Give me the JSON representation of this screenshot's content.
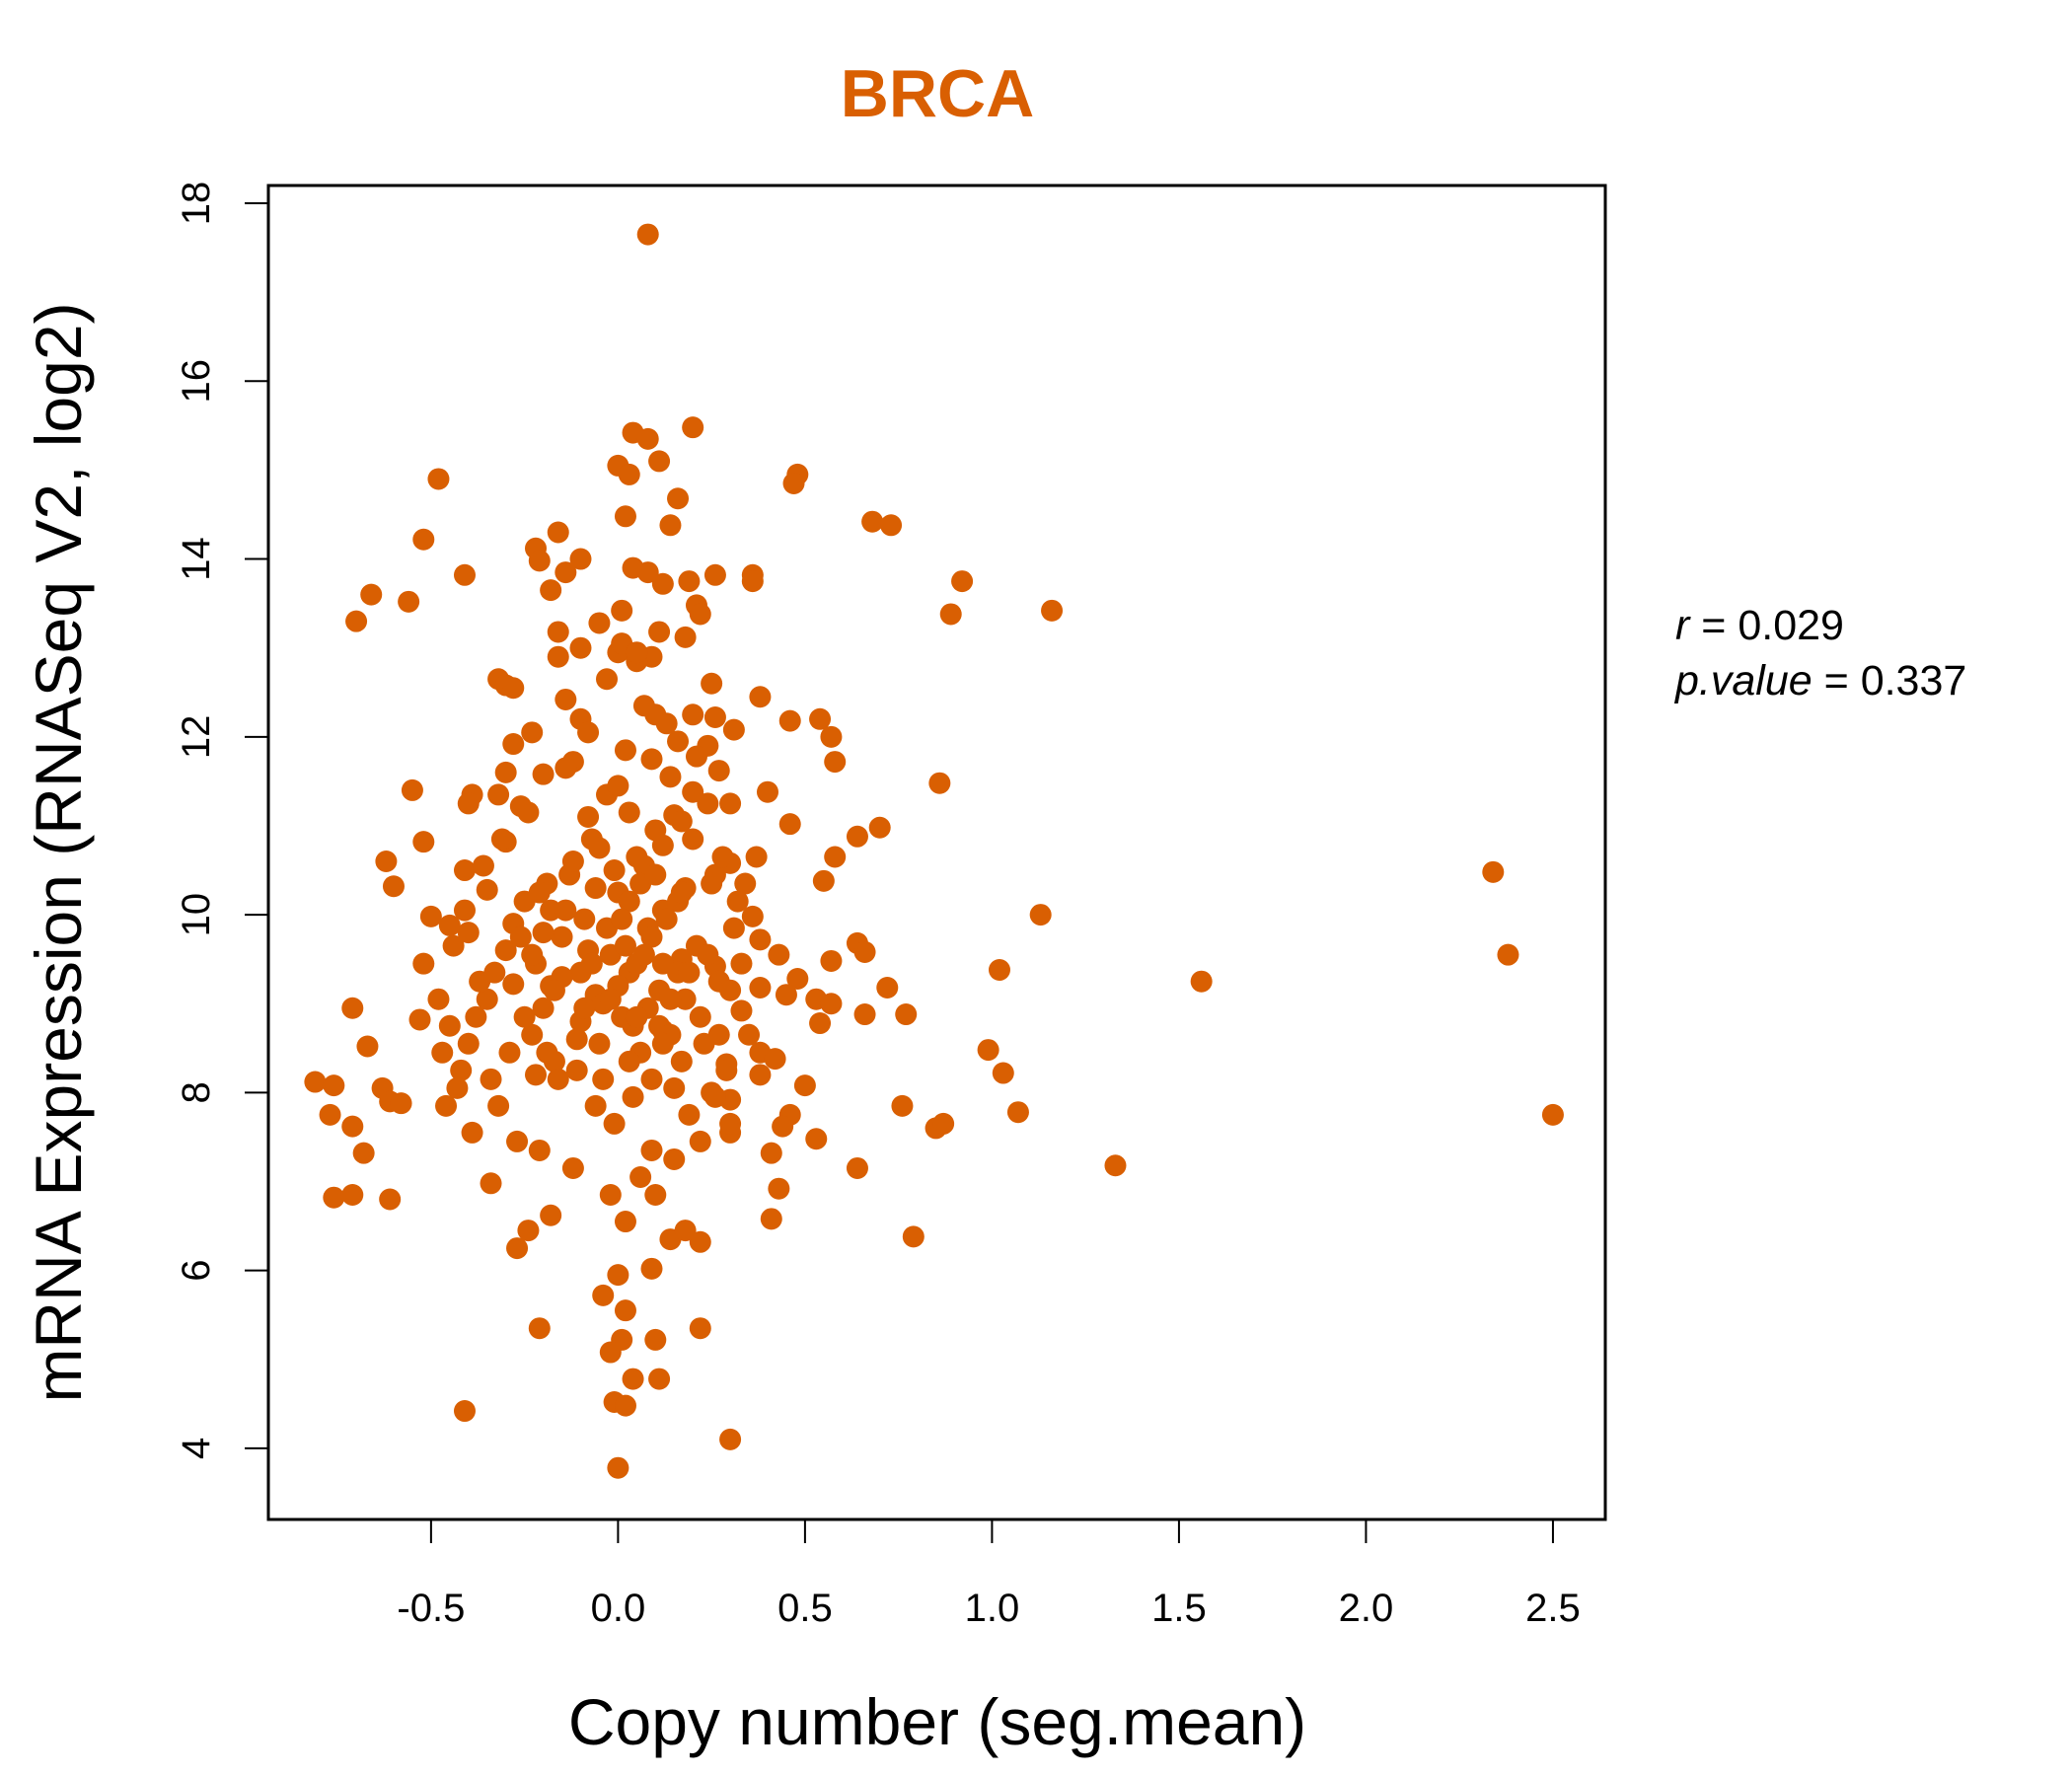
{
  "chart_data": {
    "type": "scatter",
    "title": "BRCA",
    "xlabel": "Copy number (seg.mean)",
    "ylabel": "mRNA Expression (RNASeq V2, log2)",
    "xlim": [
      -0.935,
      2.64
    ],
    "ylim": [
      3.2,
      18.2
    ],
    "xticks": [
      -0.5,
      0.0,
      0.5,
      1.0,
      1.5,
      2.0,
      2.5
    ],
    "xtick_labels": [
      "-0.5",
      "0.0",
      "0.5",
      "1.0",
      "1.5",
      "2.0",
      "2.5"
    ],
    "yticks": [
      4,
      6,
      8,
      10,
      12,
      14,
      16,
      18
    ],
    "ytick_labels": [
      "4",
      "6",
      "8",
      "10",
      "12",
      "14",
      "16",
      "18"
    ],
    "grid": false,
    "point_color": "#d95f02",
    "stats": {
      "r_label": "r",
      "r_value": "0.029",
      "p_label": "p.value",
      "p_value": "0.337"
    },
    "points": [
      [
        0.08,
        17.65
      ],
      [
        0.2,
        15.48
      ],
      [
        0.04,
        15.42
      ],
      [
        0.08,
        15.35
      ],
      [
        0.0,
        15.05
      ],
      [
        0.11,
        15.1
      ],
      [
        0.03,
        14.95
      ],
      [
        0.48,
        14.95
      ],
      [
        0.47,
        14.85
      ],
      [
        -0.48,
        14.9
      ],
      [
        0.16,
        14.68
      ],
      [
        0.02,
        14.48
      ],
      [
        0.68,
        14.42
      ],
      [
        0.73,
        14.38
      ],
      [
        0.14,
        14.38
      ],
      [
        -0.16,
        14.3
      ],
      [
        -0.52,
        14.22
      ],
      [
        -0.22,
        14.12
      ],
      [
        -0.21,
        13.98
      ],
      [
        -0.1,
        14.0
      ],
      [
        0.04,
        13.9
      ],
      [
        0.08,
        13.85
      ],
      [
        -0.14,
        13.85
      ],
      [
        0.26,
        13.82
      ],
      [
        0.36,
        13.82
      ],
      [
        0.36,
        13.75
      ],
      [
        0.19,
        13.75
      ],
      [
        -0.41,
        13.82
      ],
      [
        0.92,
        13.75
      ],
      [
        -0.66,
        13.6
      ],
      [
        -0.56,
        13.52
      ],
      [
        -0.18,
        13.65
      ],
      [
        0.12,
        13.72
      ],
      [
        0.21,
        13.48
      ],
      [
        0.22,
        13.38
      ],
      [
        0.01,
        13.42
      ],
      [
        0.89,
        13.38
      ],
      [
        1.16,
        13.42
      ],
      [
        -0.7,
        13.3
      ],
      [
        -0.05,
        13.28
      ],
      [
        0.11,
        13.18
      ],
      [
        0.18,
        13.12
      ],
      [
        -0.16,
        13.18
      ],
      [
        -0.1,
        13.0
      ],
      [
        0.0,
        12.95
      ],
      [
        0.09,
        12.9
      ],
      [
        -0.16,
        12.9
      ],
      [
        0.05,
        12.85
      ],
      [
        -0.32,
        12.65
      ],
      [
        -0.3,
        12.58
      ],
      [
        0.25,
        12.6
      ],
      [
        -0.28,
        12.55
      ],
      [
        0.38,
        12.45
      ],
      [
        -0.14,
        12.42
      ],
      [
        0.1,
        12.25
      ],
      [
        0.2,
        12.25
      ],
      [
        0.26,
        12.22
      ],
      [
        0.54,
        12.2
      ],
      [
        0.46,
        12.18
      ],
      [
        -0.1,
        12.2
      ],
      [
        0.31,
        12.08
      ],
      [
        0.57,
        12.0
      ],
      [
        -0.23,
        12.05
      ],
      [
        0.16,
        11.95
      ],
      [
        -0.28,
        11.92
      ],
      [
        0.24,
        11.9
      ],
      [
        0.58,
        11.72
      ],
      [
        0.21,
        11.78
      ],
      [
        -0.12,
        11.72
      ],
      [
        0.27,
        11.62
      ],
      [
        -0.3,
        11.6
      ],
      [
        -0.2,
        11.58
      ],
      [
        0.86,
        11.48
      ],
      [
        0.4,
        11.38
      ],
      [
        -0.55,
        11.4
      ],
      [
        -0.39,
        11.35
      ],
      [
        0.2,
        11.38
      ],
      [
        -0.32,
        11.35
      ],
      [
        -0.4,
        11.25
      ],
      [
        0.3,
        11.25
      ],
      [
        -0.26,
        11.22
      ],
      [
        0.15,
        11.12
      ],
      [
        -0.08,
        11.1
      ],
      [
        0.46,
        11.02
      ],
      [
        0.7,
        10.98
      ],
      [
        0.64,
        10.88
      ],
      [
        -0.52,
        10.82
      ],
      [
        -0.3,
        10.82
      ],
      [
        0.12,
        10.78
      ],
      [
        0.37,
        10.65
      ],
      [
        0.58,
        10.65
      ],
      [
        -0.62,
        10.6
      ],
      [
        0.3,
        10.58
      ],
      [
        -0.41,
        10.5
      ],
      [
        0.26,
        10.45
      ],
      [
        0.55,
        10.38
      ],
      [
        -0.6,
        10.32
      ],
      [
        0.34,
        10.35
      ],
      [
        0.18,
        10.3
      ],
      [
        -0.35,
        10.28
      ],
      [
        1.13,
        10.0
      ],
      [
        -0.5,
        9.98
      ],
      [
        0.36,
        9.98
      ],
      [
        2.34,
        10.48
      ],
      [
        -0.45,
        9.88
      ],
      [
        -0.4,
        9.8
      ],
      [
        0.38,
        9.72
      ],
      [
        0.64,
        9.68
      ],
      [
        0.66,
        9.58
      ],
      [
        2.38,
        9.55
      ],
      [
        -0.52,
        9.45
      ],
      [
        0.43,
        9.55
      ],
      [
        0.57,
        9.48
      ],
      [
        0.17,
        9.5
      ],
      [
        1.02,
        9.38
      ],
      [
        0.26,
        9.42
      ],
      [
        1.56,
        9.25
      ],
      [
        0.48,
        9.28
      ],
      [
        0.72,
        9.18
      ],
      [
        0.38,
        9.18
      ],
      [
        -0.28,
        9.22
      ],
      [
        0.45,
        9.1
      ],
      [
        0.53,
        9.05
      ],
      [
        0.57,
        9.0
      ],
      [
        -0.71,
        8.95
      ],
      [
        0.33,
        8.92
      ],
      [
        0.66,
        8.88
      ],
      [
        0.77,
        8.88
      ],
      [
        -0.53,
        8.82
      ],
      [
        0.54,
        8.78
      ],
      [
        -0.45,
        8.75
      ],
      [
        0.12,
        8.7
      ],
      [
        -0.67,
        8.52
      ],
      [
        0.99,
        8.48
      ],
      [
        0.38,
        8.45
      ],
      [
        0.42,
        8.38
      ],
      [
        0.29,
        8.32
      ],
      [
        -0.47,
        8.45
      ],
      [
        1.03,
        8.22
      ],
      [
        -0.22,
        8.2
      ],
      [
        0.38,
        8.2
      ],
      [
        0.5,
        8.08
      ],
      [
        -0.81,
        8.12
      ],
      [
        -0.76,
        8.08
      ],
      [
        -0.63,
        8.05
      ],
      [
        0.25,
        8.0
      ],
      [
        -0.61,
        7.9
      ],
      [
        0.3,
        7.92
      ],
      [
        -0.58,
        7.88
      ],
      [
        0.76,
        7.85
      ],
      [
        1.07,
        7.78
      ],
      [
        0.46,
        7.75
      ],
      [
        -0.77,
        7.75
      ],
      [
        -0.71,
        7.62
      ],
      [
        0.85,
        7.6
      ],
      [
        0.87,
        7.65
      ],
      [
        0.44,
        7.62
      ],
      [
        0.3,
        7.55
      ],
      [
        -0.68,
        7.32
      ],
      [
        0.41,
        7.32
      ],
      [
        0.53,
        7.48
      ],
      [
        2.5,
        7.75
      ],
      [
        1.33,
        7.18
      ],
      [
        0.64,
        7.15
      ],
      [
        -0.76,
        6.82
      ],
      [
        -0.71,
        6.85
      ],
      [
        -0.61,
        6.8
      ],
      [
        -0.34,
        6.98
      ],
      [
        0.43,
        6.92
      ],
      [
        -0.18,
        6.62
      ],
      [
        0.41,
        6.58
      ],
      [
        0.79,
        6.38
      ],
      [
        -0.27,
        6.25
      ],
      [
        -0.24,
        6.45
      ],
      [
        0.14,
        6.35
      ],
      [
        0.22,
        6.32
      ],
      [
        0.09,
        6.02
      ],
      [
        0.0,
        5.95
      ],
      [
        -0.04,
        5.72
      ],
      [
        0.02,
        5.55
      ],
      [
        -0.21,
        5.35
      ],
      [
        0.22,
        5.35
      ],
      [
        0.01,
        5.22
      ],
      [
        0.1,
        5.22
      ],
      [
        -0.02,
        5.08
      ],
      [
        0.04,
        4.78
      ],
      [
        0.11,
        4.78
      ],
      [
        -0.01,
        4.52
      ],
      [
        0.02,
        4.48
      ],
      [
        -0.41,
        4.42
      ],
      [
        0.3,
        4.1
      ],
      [
        0.0,
        3.78
      ],
      [
        -0.42,
        8.25
      ],
      [
        -0.4,
        8.55
      ],
      [
        -0.38,
        8.85
      ],
      [
        -0.35,
        9.05
      ],
      [
        -0.33,
        9.35
      ],
      [
        -0.3,
        9.6
      ],
      [
        -0.28,
        9.9
      ],
      [
        -0.25,
        10.15
      ],
      [
        -0.22,
        9.45
      ],
      [
        -0.2,
        8.95
      ],
      [
        -0.18,
        9.2
      ],
      [
        -0.17,
        8.35
      ],
      [
        -0.15,
        9.75
      ],
      [
        -0.13,
        10.45
      ],
      [
        -0.11,
        8.6
      ],
      [
        -0.09,
        9.95
      ],
      [
        -0.07,
        10.85
      ],
      [
        -0.06,
        9.1
      ],
      [
        -0.04,
        8.15
      ],
      [
        -0.03,
        11.35
      ],
      [
        -0.02,
        9.55
      ],
      [
        -0.01,
        7.65
      ],
      [
        0.0,
        10.25
      ],
      [
        0.01,
        8.85
      ],
      [
        0.02,
        11.85
      ],
      [
        0.03,
        9.35
      ],
      [
        0.04,
        7.95
      ],
      [
        0.05,
        10.65
      ],
      [
        0.06,
        8.45
      ],
      [
        0.07,
        12.35
      ],
      [
        0.08,
        9.85
      ],
      [
        0.09,
        7.35
      ],
      [
        0.1,
        10.95
      ],
      [
        0.11,
        8.75
      ],
      [
        0.12,
        9.45
      ],
      [
        0.14,
        11.55
      ],
      [
        0.15,
        8.05
      ],
      [
        0.16,
        10.15
      ],
      [
        0.18,
        9.05
      ],
      [
        0.19,
        7.75
      ],
      [
        0.21,
        9.65
      ],
      [
        0.23,
        8.55
      ],
      [
        0.25,
        10.35
      ],
      [
        0.27,
        9.25
      ],
      [
        0.29,
        8.25
      ],
      [
        0.31,
        9.85
      ],
      [
        0.33,
        9.45
      ],
      [
        0.35,
        8.65
      ],
      [
        -0.48,
        9.05
      ],
      [
        -0.46,
        7.85
      ],
      [
        -0.44,
        9.65
      ],
      [
        -0.43,
        8.05
      ],
      [
        -0.41,
        10.05
      ],
      [
        -0.39,
        7.55
      ],
      [
        -0.37,
        9.25
      ],
      [
        -0.36,
        10.55
      ],
      [
        -0.34,
        8.15
      ],
      [
        -0.32,
        7.85
      ],
      [
        -0.31,
        10.85
      ],
      [
        -0.29,
        8.45
      ],
      [
        -0.27,
        7.45
      ],
      [
        -0.26,
        9.75
      ],
      [
        -0.24,
        11.15
      ],
      [
        -0.23,
        8.65
      ],
      [
        -0.21,
        7.35
      ],
      [
        -0.19,
        10.35
      ],
      [
        -0.16,
        8.15
      ],
      [
        -0.14,
        11.65
      ],
      [
        -0.12,
        7.15
      ],
      [
        -0.1,
        9.35
      ],
      [
        -0.08,
        12.05
      ],
      [
        -0.06,
        7.85
      ],
      [
        -0.05,
        10.75
      ],
      [
        -0.03,
        12.65
      ],
      [
        -0.02,
        6.85
      ],
      [
        0.0,
        11.45
      ],
      [
        0.01,
        13.05
      ],
      [
        0.02,
        6.55
      ],
      [
        0.03,
        11.15
      ],
      [
        0.05,
        12.95
      ],
      [
        0.06,
        7.05
      ],
      [
        0.07,
        10.55
      ],
      [
        0.09,
        11.75
      ],
      [
        0.1,
        6.85
      ],
      [
        0.12,
        10.05
      ],
      [
        0.13,
        12.15
      ],
      [
        0.15,
        7.25
      ],
      [
        0.17,
        11.05
      ],
      [
        0.18,
        6.45
      ],
      [
        0.2,
        10.85
      ],
      [
        0.22,
        7.45
      ],
      [
        0.24,
        11.25
      ],
      [
        0.26,
        7.95
      ],
      [
        0.28,
        10.65
      ],
      [
        0.3,
        7.65
      ],
      [
        0.32,
        10.15
      ],
      [
        -0.2,
        9.8
      ],
      [
        -0.18,
        10.05
      ],
      [
        -0.15,
        9.3
      ],
      [
        -0.12,
        10.6
      ],
      [
        -0.1,
        8.8
      ],
      [
        -0.08,
        9.6
      ],
      [
        -0.06,
        10.3
      ],
      [
        -0.04,
        9.0
      ],
      [
        -0.03,
        9.85
      ],
      [
        -0.01,
        10.5
      ],
      [
        0.0,
        9.2
      ],
      [
        0.02,
        9.65
      ],
      [
        0.03,
        10.15
      ],
      [
        0.04,
        8.75
      ],
      [
        0.05,
        9.45
      ],
      [
        0.06,
        10.35
      ],
      [
        0.08,
        8.95
      ],
      [
        0.09,
        9.75
      ],
      [
        0.1,
        10.45
      ],
      [
        0.11,
        9.15
      ],
      [
        0.13,
        9.95
      ],
      [
        0.14,
        8.65
      ],
      [
        0.16,
        9.35
      ],
      [
        0.17,
        10.25
      ],
      [
        -0.25,
        8.85
      ],
      [
        -0.23,
        9.55
      ],
      [
        -0.21,
        10.25
      ],
      [
        -0.19,
        8.45
      ],
      [
        -0.17,
        9.15
      ],
      [
        -0.14,
        10.05
      ],
      [
        -0.11,
        8.25
      ],
      [
        -0.09,
        8.95
      ],
      [
        -0.07,
        9.45
      ],
      [
        -0.05,
        8.55
      ],
      [
        -0.02,
        9.05
      ],
      [
        0.01,
        9.95
      ],
      [
        0.03,
        8.35
      ],
      [
        0.05,
        8.85
      ],
      [
        0.07,
        9.55
      ],
      [
        0.09,
        8.15
      ],
      [
        0.12,
        8.55
      ],
      [
        0.14,
        9.05
      ],
      [
        0.17,
        8.35
      ],
      [
        0.19,
        9.35
      ],
      [
        0.22,
        8.85
      ],
      [
        0.24,
        9.55
      ],
      [
        0.27,
        8.65
      ],
      [
        0.3,
        9.15
      ]
    ]
  }
}
